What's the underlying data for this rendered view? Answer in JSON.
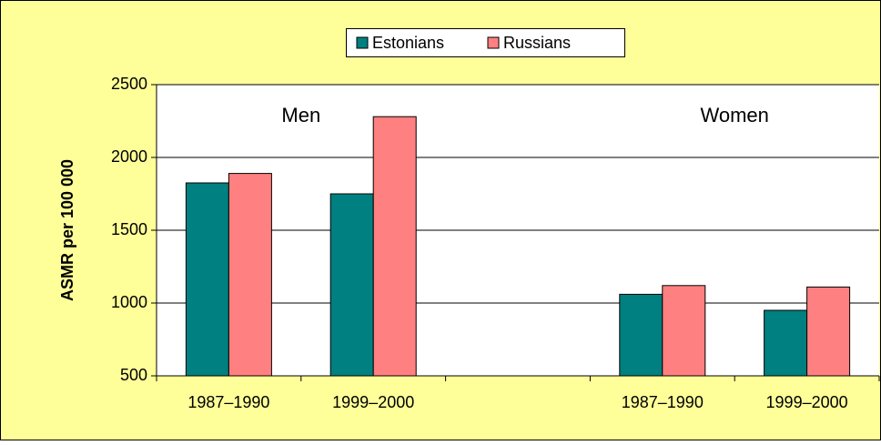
{
  "chart_data": {
    "type": "bar",
    "y_label": "ASMR per 100 000",
    "annotations": [
      "Men",
      "Women"
    ],
    "categories": [
      "1987–1990",
      "1999–2000",
      null,
      "1987–1990",
      "1999–2000"
    ],
    "series": [
      {
        "name": "Estonians",
        "color": "#008080",
        "values": [
          1825,
          1750,
          null,
          1060,
          950
        ]
      },
      {
        "name": "Russians",
        "color": "#ff8080",
        "values": [
          1890,
          2280,
          null,
          1120,
          1110
        ]
      }
    ],
    "ylim": [
      500,
      2500
    ],
    "yticks": [
      500,
      1000,
      1500,
      2000,
      2500
    ],
    "grid": true
  }
}
